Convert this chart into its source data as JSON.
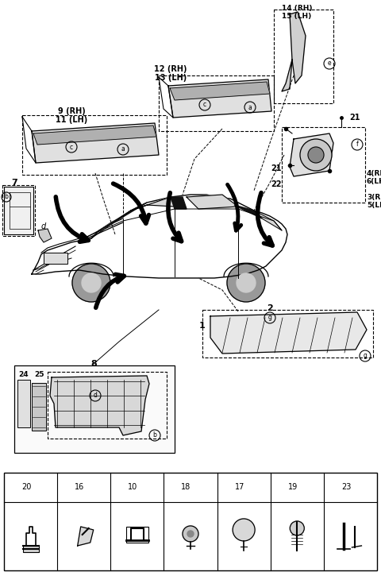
{
  "bg_color": "#ffffff",
  "fig_width": 4.8,
  "fig_height": 7.2,
  "dpi": 100,
  "legend_items": [
    {
      "letter": "a",
      "number": "20"
    },
    {
      "letter": "b",
      "number": "16"
    },
    {
      "letter": "c",
      "number": "10"
    },
    {
      "letter": "d",
      "number": "18"
    },
    {
      "letter": "e",
      "number": "17"
    },
    {
      "letter": "f",
      "number": "19"
    },
    {
      "letter": "g",
      "number": "23"
    }
  ]
}
